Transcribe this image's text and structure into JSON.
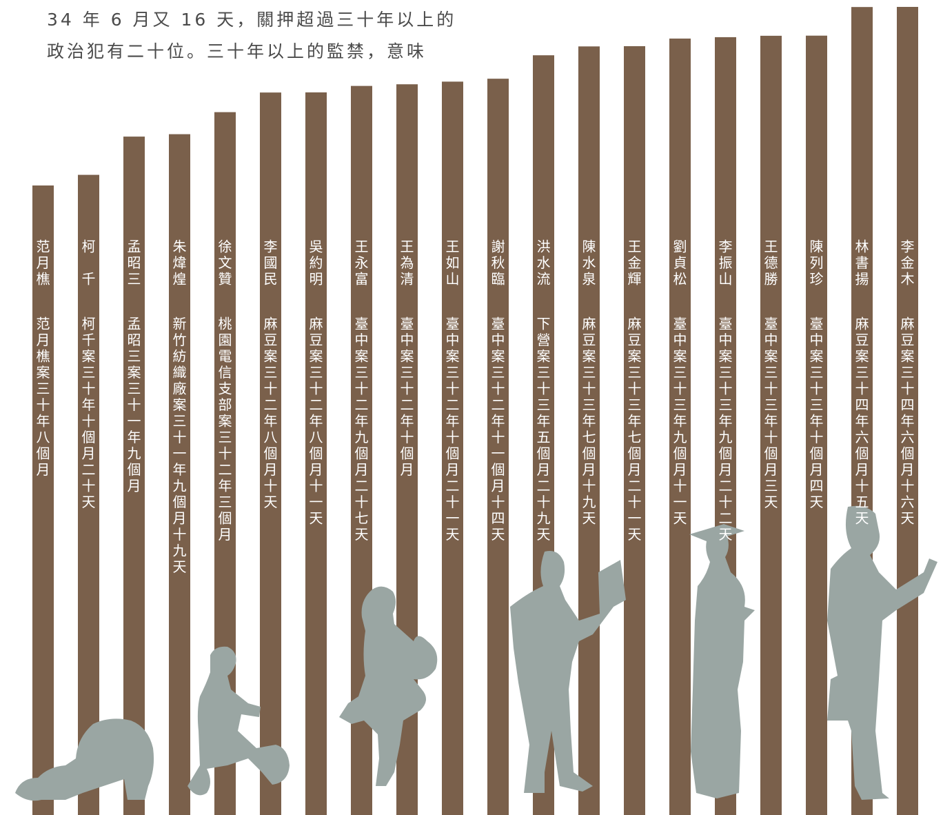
{
  "intro": {
    "line1": "34 年 6 月又 16 天，關押超過三十年以上的",
    "line2": "政治犯有二十位。三十年以上的監禁，意味"
  },
  "colors": {
    "bar": "#7a604b",
    "bar_text": "#ffffff",
    "silhouette": "#9aa6a3",
    "intro_text": "#4a4a4a"
  },
  "chart_data": {
    "type": "bar",
    "orientation": "vertical",
    "unit": "days",
    "categories": [
      "范月樵",
      "柯　千",
      "孟昭三",
      "朱煒煌",
      "徐文贊",
      "李國民",
      "吳約明",
      "王永富",
      "王為清",
      "王如山",
      "謝秋臨",
      "洪水流",
      "陳水泉",
      "王金輝",
      "劉貞松",
      "李振山",
      "王德勝",
      "陳列珍",
      "林書揚",
      "李金木"
    ],
    "labels": [
      "范月樵案三十年八個月",
      "柯千案三十年十個月二十天",
      "孟昭三案三十一年九個月",
      "新竹紡織廠案三十一年九個月十九天",
      "桃園電信支部案三十二年三個月",
      "麻豆案三十二年八個月十天",
      "麻豆案三十二年八個月十一天",
      "臺中案三十二年九個月二十七天",
      "臺中案三十二年十個月",
      "臺中案三十二年十個月二十一天",
      "臺中案三十二年十一個月十四天",
      "下營案三十三年五個月二十九天",
      "麻豆案三十三年七個月十九天",
      "麻豆案三十三年七個月二十一天",
      "臺中案三十三年九個月十一天",
      "臺中案三十三年九個月二十二天",
      "臺中案三十三年十個月三天",
      "臺中案三十三年十個月四天",
      "麻豆案三十四年六個月十五天",
      "麻豆案三十四年六個月十六天"
    ],
    "values": [
      11201,
      11285,
      11587,
      11606,
      11780,
      11935,
      11936,
      11987,
      12000,
      12021,
      12044,
      12229,
      12299,
      12301,
      12361,
      12372,
      12383,
      12384,
      12610,
      12611
    ],
    "ylim": [
      0,
      12611
    ],
    "title": "",
    "xlabel": "",
    "ylabel": "",
    "grid": false,
    "legend": "none"
  }
}
